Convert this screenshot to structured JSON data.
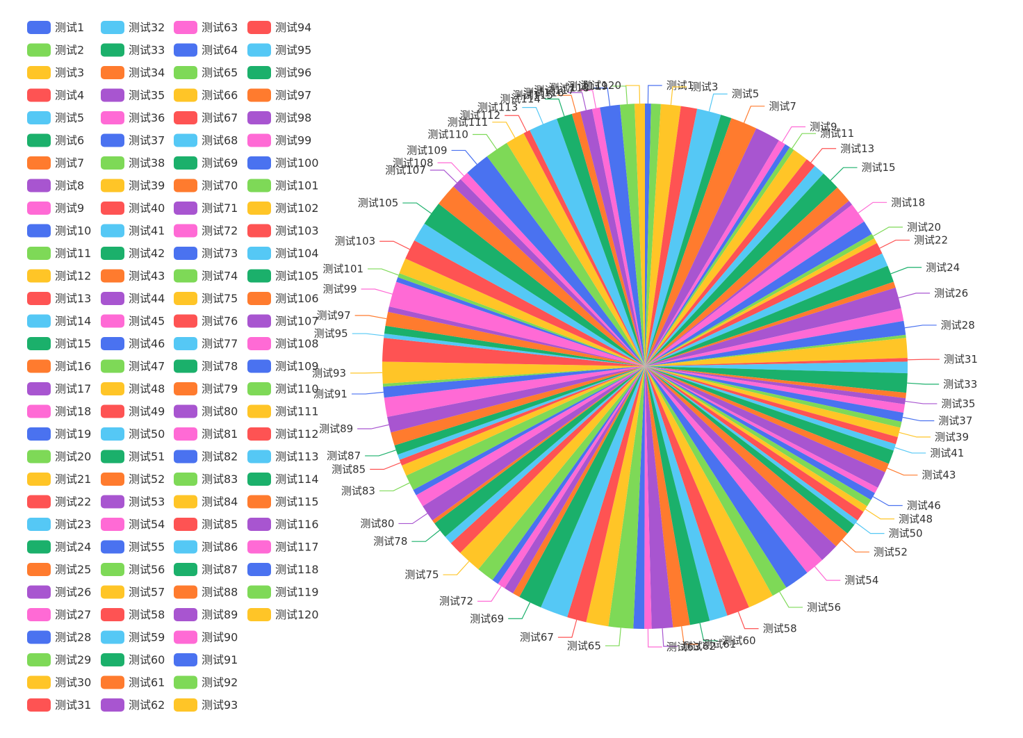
{
  "palette": [
    "#4a72f0",
    "#7ed957",
    "#ffc527",
    "#fe5353",
    "#55c8f5",
    "#1bb06b",
    "#ff7b2e",
    "#a855d0",
    "#ff6ad5"
  ],
  "chart_data": {
    "type": "pie",
    "title": "",
    "categories": [
      "测试1",
      "测试2",
      "测试3",
      "测试4",
      "测试5",
      "测试6",
      "测试7",
      "测试8",
      "测试9",
      "测试10",
      "测试11",
      "测试12",
      "测试13",
      "测试14",
      "测试15",
      "测试16",
      "测试17",
      "测试18",
      "测试19",
      "测试20",
      "测试21",
      "测试22",
      "测试23",
      "测试24",
      "测试25",
      "测试26",
      "测试27",
      "测试28",
      "测试29",
      "测试30",
      "测试31",
      "测试32",
      "测试33",
      "测试34",
      "测试35",
      "测试36",
      "测试37",
      "测试38",
      "测试39",
      "测试40",
      "测试41",
      "测试42",
      "测试43",
      "测试44",
      "测试45",
      "测试46",
      "测试47",
      "测试48",
      "测试49",
      "测试50",
      "测试51",
      "测试52",
      "测试53",
      "测试54",
      "测试55",
      "测试56",
      "测试57",
      "测试58",
      "测试59",
      "测试60",
      "测试61",
      "测试62",
      "测试63",
      "测试64",
      "测试65",
      "测试66",
      "测试67",
      "测试68",
      "测试69",
      "测试70",
      "测试71",
      "测试72",
      "测试73",
      "测试74",
      "测试75",
      "测试76",
      "测试77",
      "测试78",
      "测试79",
      "测试80",
      "测试81",
      "测试82",
      "测试83",
      "测试84",
      "测试85",
      "测试86",
      "测试87",
      "测试88",
      "测试89",
      "测试90",
      "测试91",
      "测试92",
      "测试93",
      "测试94",
      "测试95",
      "测试96",
      "测试97",
      "测试98",
      "测试99",
      "测试100",
      "测试101",
      "测试102",
      "测试103",
      "测试104",
      "测试105",
      "测试106",
      "测试107",
      "测试108",
      "测试109",
      "测试110",
      "测试111",
      "测试112",
      "测试113",
      "测试114",
      "测试115",
      "测试116",
      "测试117",
      "测试118",
      "测试119",
      "测试120"
    ],
    "values": [
      1.0,
      1.6,
      3.3,
      2.7,
      4.0,
      1.8,
      4.4,
      4.2,
      1.2,
      0.9,
      0.8,
      2.6,
      1.7,
      1.9,
      3.2,
      2.9,
      0.8,
      3.4,
      2.4,
      0.8,
      0.9,
      1.9,
      2.2,
      2.8,
      1.0,
      3.5,
      2.1,
      2.3,
      0.5,
      3.3,
      0.6,
      1.9,
      3.2,
      0.9,
      1.0,
      1.4,
      1.5,
      1.0,
      1.6,
      1.2,
      1.1,
      2.3,
      1.5,
      2.8,
      1.0,
      1.3,
      1.2,
      1.1,
      1.7,
      0.9,
      1.8,
      2.8,
      3.2,
      3.2,
      4.2,
      2.6,
      4.3,
      3.8,
      3.0,
      3.3,
      2.8,
      3.5,
      1.2,
      1.8,
      4.1,
      3.7,
      3.2,
      4.6,
      3.9,
      1.2,
      1.6,
      1.3,
      1.1,
      2.9,
      4.0,
      2.2,
      1.4,
      2.8,
      0.6,
      2.8,
      2.1,
      1.0,
      2.6,
      1.8,
      1.0,
      0.9,
      1.6,
      2.2,
      2.6,
      3.2,
      1.8,
      0.5,
      3.6,
      3.9,
      0.7,
      1.3,
      2.3,
      0.9,
      4.2,
      0.8,
      0.7,
      2.6,
      3.3,
      3.2,
      4.0,
      3.7,
      1.7,
      1.5,
      4.2,
      3.9,
      3.2,
      1.1,
      4.8,
      2.6,
      1.4,
      2.0,
      1.3,
      3.3,
      2.4,
      1.7
    ],
    "label_every": [
      1,
      3,
      5,
      7,
      9,
      11,
      13,
      15,
      18,
      20,
      22,
      24,
      26,
      28,
      31,
      33,
      35,
      37,
      39,
      41,
      43,
      46,
      48,
      50,
      52,
      54,
      56,
      58,
      60,
      61,
      62,
      63,
      65,
      67,
      69,
      72,
      75,
      78,
      80,
      83,
      85,
      87,
      89,
      91,
      93,
      95,
      97,
      99,
      101,
      103,
      105,
      107,
      108,
      109,
      110,
      111,
      112,
      113,
      114,
      115,
      116,
      117,
      118,
      119,
      120
    ],
    "start_angle_deg": 90,
    "clockwise": true,
    "legend_position": "left"
  }
}
